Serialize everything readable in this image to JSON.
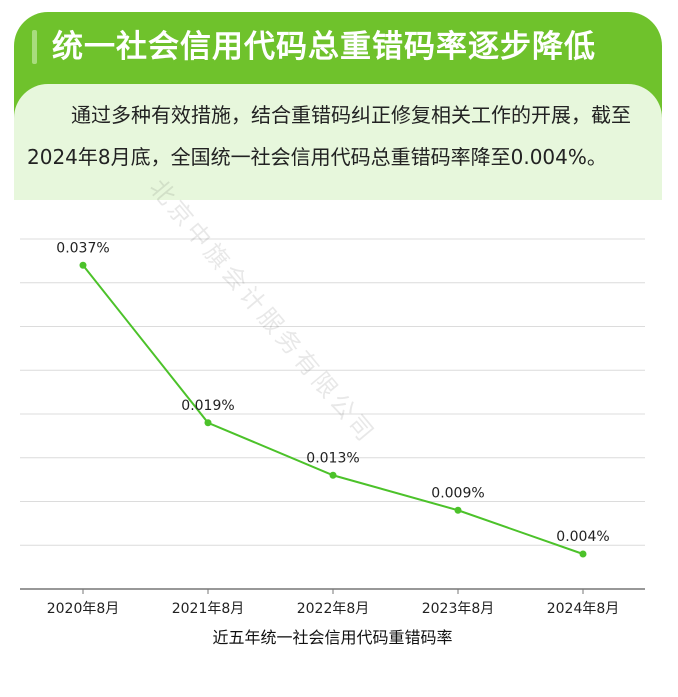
{
  "header": {
    "title": "统一社会信用代码总重错码率逐步降低",
    "paragraph": "通过多种有效措施，结合重错码纠正修复相关工作的开展，截至2024年8月底，全国统一社会信用代码总重错码率降至0.004%。"
  },
  "watermark": "北京中旗会计服务有限公司",
  "colors": {
    "header_green": "#6fc22c",
    "panel_green": "#e7f7dc",
    "line": "#4cc22a"
  },
  "chart_data": {
    "type": "line",
    "categories": [
      "2020年8月",
      "2021年8月",
      "2022年8月",
      "2023年8月",
      "2024年8月"
    ],
    "values": [
      0.037,
      0.019,
      0.013,
      0.009,
      0.004
    ],
    "data_labels": [
      "0.037%",
      "0.019%",
      "0.013%",
      "0.009%",
      "0.004%"
    ],
    "title": "",
    "xlabel": "近五年统一社会信用代码重错码率",
    "ylabel": "",
    "ylim": [
      0,
      0.04
    ],
    "grid": true,
    "unit": "%"
  }
}
